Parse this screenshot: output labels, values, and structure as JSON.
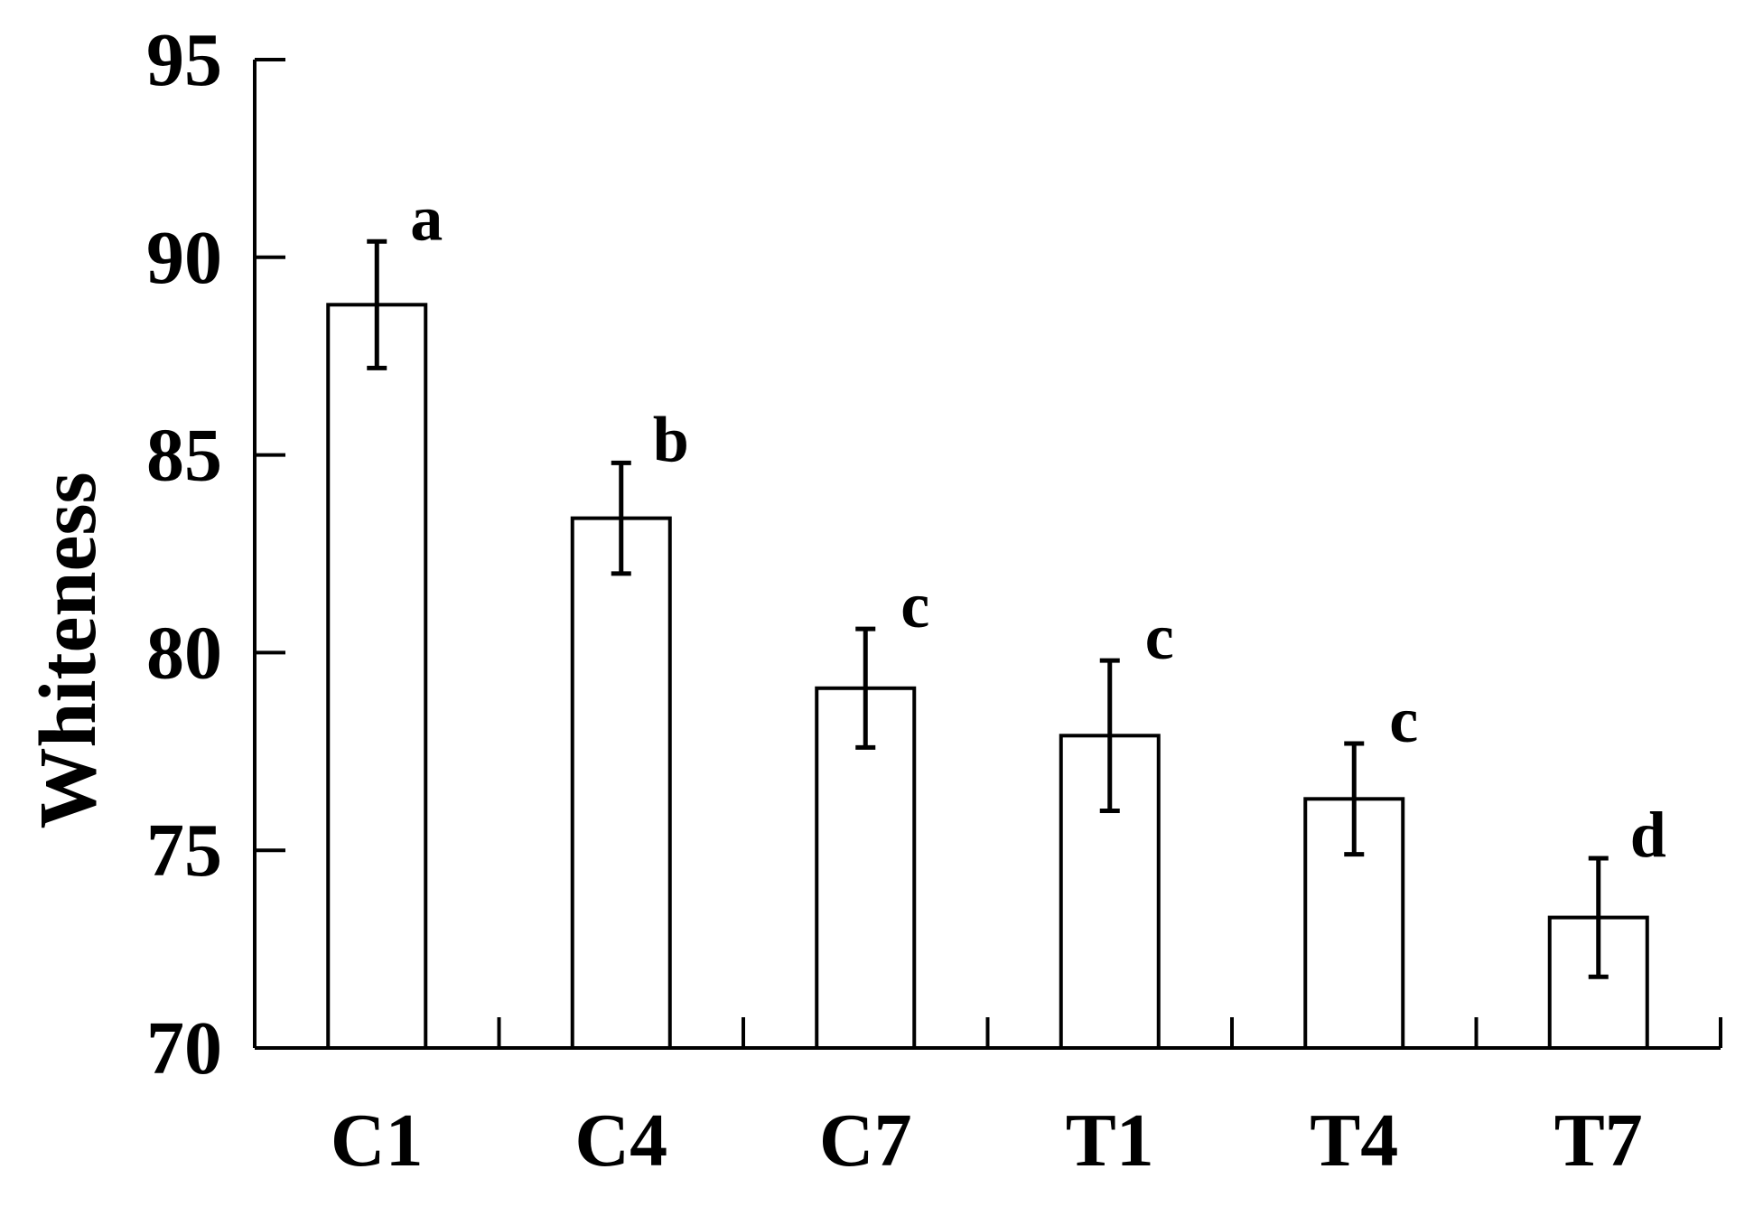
{
  "chart_data": {
    "type": "bar",
    "categories": [
      "C1",
      "C4",
      "C7",
      "T1",
      "T4",
      "T7"
    ],
    "values": [
      88.8,
      83.4,
      79.1,
      77.9,
      76.3,
      73.3
    ],
    "errors": [
      1.6,
      1.4,
      1.5,
      1.9,
      1.4,
      1.5
    ],
    "significance": [
      "a",
      "b",
      "c",
      "c",
      "c",
      "d"
    ],
    "ylabel": "Whiteness",
    "xlabel": "",
    "ylim": [
      70,
      95
    ],
    "yticks": [
      70,
      75,
      80,
      85,
      90,
      95
    ],
    "grid": false,
    "colors": {
      "bar_fill": "#ffffff",
      "stroke": "#000000"
    }
  }
}
